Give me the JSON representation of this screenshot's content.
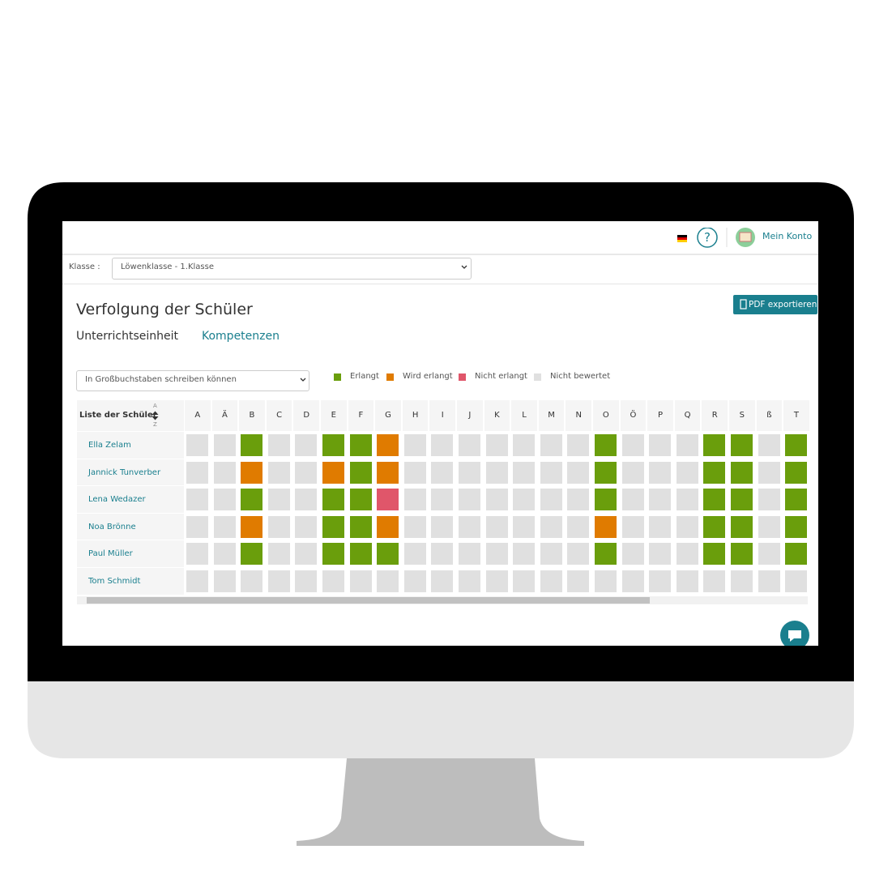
{
  "header": {
    "account": "Mein Konto"
  },
  "class_filter": {
    "label": "Klasse :",
    "value": "Löwenklasse - 1.Klasse"
  },
  "page": {
    "title": "Verfolgung der Schüler",
    "export_button": "PDF exportieren",
    "tabs": [
      "Unterrichtseinheit",
      "Kompetenzen"
    ]
  },
  "skill_filter": "In Großbuchstaben schreiben können",
  "legend": [
    {
      "label": "Erlangt",
      "color": "#6a9e0c"
    },
    {
      "label": "Wird erlangt",
      "color": "#e07b00"
    },
    {
      "label": "Nicht erlangt",
      "color": "#e0566a"
    },
    {
      "label": "Nicht bewertet",
      "color": "#e0e0e0"
    }
  ],
  "table": {
    "header": "Liste der Schüler",
    "sort_labels": [
      "A",
      "Z"
    ],
    "columns": [
      "A",
      "Ä",
      "B",
      "C",
      "D",
      "E",
      "F",
      "G",
      "H",
      "I",
      "J",
      "K",
      "L",
      "M",
      "N",
      "O",
      "Ö",
      "P",
      "Q",
      "R",
      "S",
      "ß",
      "T"
    ],
    "rows": [
      {
        "name": "Ella Zelam",
        "status": [
          3,
          3,
          0,
          3,
          3,
          0,
          0,
          1,
          3,
          3,
          3,
          3,
          3,
          3,
          3,
          0,
          3,
          3,
          3,
          0,
          0,
          3,
          0
        ]
      },
      {
        "name": "Jannick Tunverber",
        "status": [
          3,
          3,
          1,
          3,
          3,
          1,
          0,
          1,
          3,
          3,
          3,
          3,
          3,
          3,
          3,
          0,
          3,
          3,
          3,
          0,
          0,
          3,
          0
        ]
      },
      {
        "name": "Lena Wedazer",
        "status": [
          3,
          3,
          0,
          3,
          3,
          0,
          0,
          2,
          3,
          3,
          3,
          3,
          3,
          3,
          3,
          0,
          3,
          3,
          3,
          0,
          0,
          3,
          0
        ]
      },
      {
        "name": "Noa Brönne",
        "status": [
          3,
          3,
          1,
          3,
          3,
          0,
          0,
          1,
          3,
          3,
          3,
          3,
          3,
          3,
          3,
          1,
          3,
          3,
          3,
          0,
          0,
          3,
          0
        ]
      },
      {
        "name": "Paul Müller",
        "status": [
          3,
          3,
          0,
          3,
          3,
          0,
          0,
          0,
          3,
          3,
          3,
          3,
          3,
          3,
          3,
          0,
          3,
          3,
          3,
          0,
          0,
          3,
          0
        ]
      },
      {
        "name": "Tom Schmidt",
        "status": [
          3,
          3,
          3,
          3,
          3,
          3,
          3,
          3,
          3,
          3,
          3,
          3,
          3,
          3,
          3,
          3,
          3,
          3,
          3,
          3,
          3,
          3,
          3
        ]
      }
    ]
  }
}
